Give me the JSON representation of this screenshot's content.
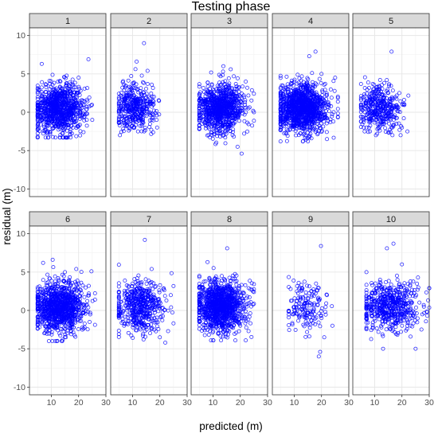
{
  "chart_data": {
    "type": "scatter",
    "title": "Testing phase",
    "xlabel": "predicted (m)",
    "ylabel": "residual (m)",
    "xlim": [
      2,
      30
    ],
    "ylim": [
      -11,
      11
    ],
    "x_ticks": [
      10,
      20,
      30
    ],
    "y_ticks": [
      -10,
      -5,
      0,
      5,
      10
    ],
    "grid": true,
    "facet_layout": {
      "rows": 2,
      "cols": 5
    },
    "marker": {
      "shape": "open-circle",
      "color": "#0000ff"
    },
    "panels": [
      {
        "label": "1",
        "x_range": [
          5,
          26
        ],
        "y_range": [
          -3.3,
          6.9
        ],
        "n_points": 900,
        "sample_points": [
          [
            6.5,
            6.3
          ],
          [
            23.6,
            6.9
          ],
          [
            20,
            4.5
          ],
          [
            15,
            3
          ],
          [
            10,
            1
          ],
          [
            12,
            0
          ],
          [
            8,
            -1
          ],
          [
            18,
            -2
          ],
          [
            16,
            -3.3
          ],
          [
            25,
            -1
          ],
          [
            13,
            2
          ],
          [
            21,
            0.5
          ]
        ]
      },
      {
        "label": "2",
        "x_range": [
          5,
          21
        ],
        "y_range": [
          -3,
          9.0
        ],
        "n_points": 400,
        "sample_points": [
          [
            14.2,
            9.0
          ],
          [
            11.5,
            6.6
          ],
          [
            15.5,
            5.4
          ],
          [
            10,
            2
          ],
          [
            13,
            0.5
          ],
          [
            7,
            -0.5
          ],
          [
            17,
            -1
          ],
          [
            12,
            -2.5
          ],
          [
            19,
            -2
          ],
          [
            16,
            2
          ]
        ]
      },
      {
        "label": "3",
        "x_range": [
          5,
          25
        ],
        "y_range": [
          -5.4,
          6.0
        ],
        "n_points": 900,
        "sample_points": [
          [
            13.8,
            6.0
          ],
          [
            16.5,
            5.6
          ],
          [
            22,
            4
          ],
          [
            10,
            3
          ],
          [
            8,
            1
          ],
          [
            12,
            0
          ],
          [
            16,
            -1
          ],
          [
            14,
            -3
          ],
          [
            19,
            -4.5
          ],
          [
            20.5,
            -5.4
          ],
          [
            23,
            0.5
          ]
        ]
      },
      {
        "label": "4",
        "x_range": [
          5,
          26
        ],
        "y_range": [
          -3.8,
          7.9
        ],
        "n_points": 1200,
        "sample_points": [
          [
            17.8,
            7.9
          ],
          [
            15.5,
            7.3
          ],
          [
            20,
            5
          ],
          [
            10,
            4
          ],
          [
            12,
            1
          ],
          [
            8,
            0
          ],
          [
            16,
            -1
          ],
          [
            14,
            -3
          ],
          [
            22,
            -3.5
          ],
          [
            25,
            4.5
          ],
          [
            18,
            2
          ]
        ]
      },
      {
        "label": "5",
        "x_range": [
          5,
          23
        ],
        "y_range": [
          -3,
          7.9
        ],
        "n_points": 380,
        "sample_points": [
          [
            16.2,
            7.9
          ],
          [
            12,
            4.2
          ],
          [
            8,
            1.5
          ],
          [
            10,
            0
          ],
          [
            14,
            -0.5
          ],
          [
            6,
            -2
          ],
          [
            18,
            -1.5
          ],
          [
            20,
            -2
          ],
          [
            22,
            -2.5
          ],
          [
            15,
            2.5
          ]
        ]
      },
      {
        "label": "6",
        "x_range": [
          5,
          26
        ],
        "y_range": [
          -4.0,
          6.6
        ],
        "n_points": 1000,
        "sample_points": [
          [
            10.5,
            6.6
          ],
          [
            7,
            6.2
          ],
          [
            24.7,
            5.1
          ],
          [
            15,
            5
          ],
          [
            10,
            3
          ],
          [
            12,
            1
          ],
          [
            8,
            0
          ],
          [
            16,
            -1
          ],
          [
            13,
            -3
          ],
          [
            14,
            -4.0
          ],
          [
            20,
            0.5
          ]
        ]
      },
      {
        "label": "7",
        "x_range": [
          5,
          25
        ],
        "y_range": [
          -4.2,
          9.2
        ],
        "n_points": 500,
        "sample_points": [
          [
            14.5,
            9.2
          ],
          [
            17,
            5.4
          ],
          [
            10,
            3.5
          ],
          [
            12,
            1
          ],
          [
            8,
            0
          ],
          [
            15,
            -1
          ],
          [
            18,
            -2.5
          ],
          [
            20,
            -3.5
          ],
          [
            22,
            -4.2
          ],
          [
            24,
            2
          ]
        ]
      },
      {
        "label": "8",
        "x_range": [
          5,
          25
        ],
        "y_range": [
          -3.9,
          8.1
        ],
        "n_points": 1100,
        "sample_points": [
          [
            15.2,
            8.1
          ],
          [
            8,
            6.3
          ],
          [
            12,
            4
          ],
          [
            18,
            2
          ],
          [
            10,
            1
          ],
          [
            14,
            0
          ],
          [
            16,
            -1
          ],
          [
            20,
            -2
          ],
          [
            22,
            -3.9
          ],
          [
            24,
            0.5
          ]
        ]
      },
      {
        "label": "9",
        "x_range": [
          8,
          25
        ],
        "y_range": [
          -6.0,
          8.4
        ],
        "n_points": 160,
        "sample_points": [
          [
            19.8,
            8.4
          ],
          [
            18,
            3.5
          ],
          [
            22,
            2
          ],
          [
            13,
            0.5
          ],
          [
            16,
            -0.5
          ],
          [
            20,
            -1
          ],
          [
            21,
            -3.5
          ],
          [
            24,
            -2
          ],
          [
            19.5,
            -5.4
          ],
          [
            19,
            -6.0
          ]
        ]
      },
      {
        "label": "10",
        "x_range": [
          7,
          30
        ],
        "y_range": [
          -5.0,
          8.7
        ],
        "n_points": 550,
        "sample_points": [
          [
            16.9,
            8.7
          ],
          [
            14.5,
            8.1
          ],
          [
            20,
            6
          ],
          [
            12,
            4
          ],
          [
            18,
            2
          ],
          [
            10,
            0.5
          ],
          [
            15,
            -0.5
          ],
          [
            22,
            -2
          ],
          [
            25,
            -5.0
          ],
          [
            29.3,
            -0.2
          ],
          [
            26,
            3
          ]
        ]
      }
    ]
  }
}
